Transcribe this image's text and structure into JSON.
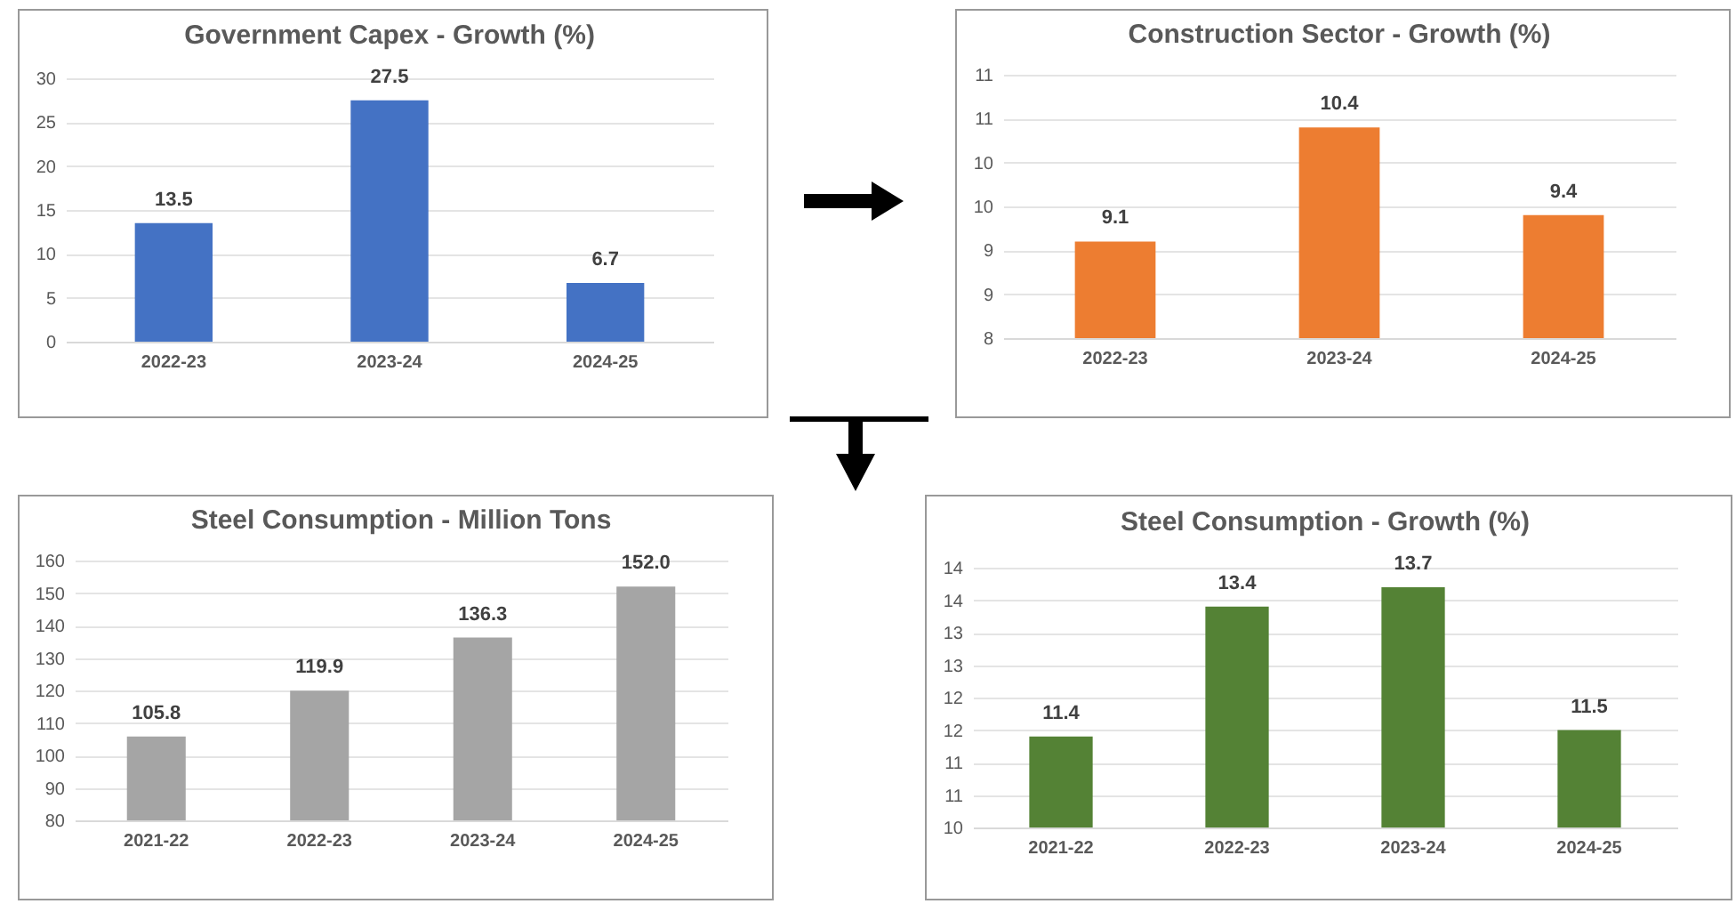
{
  "chart_data": [
    {
      "type": "bar",
      "title": "Government Capex - Growth (%)",
      "categories": [
        "2022-23",
        "2023-24",
        "2024-25"
      ],
      "values": [
        13.5,
        27.5,
        6.7
      ],
      "color": "#4472c4",
      "ylim": [
        0,
        30
      ],
      "yticks": [
        0,
        5,
        10,
        15,
        20,
        25,
        30
      ],
      "grid": "y",
      "data_labels": true
    },
    {
      "type": "bar",
      "title": "Construction Sector - Growth (%)",
      "categories": [
        "2022-23",
        "2023-24",
        "2024-25"
      ],
      "values": [
        9.1,
        10.4,
        9.4
      ],
      "color": "#ed7d31",
      "ylim": [
        8,
        11
      ],
      "yticks": [
        8,
        {
          "value": 8.5,
          "label": "9"
        },
        9,
        {
          "value": 9.5,
          "label": "10"
        },
        10,
        {
          "value": 10.5,
          "label": "11"
        },
        11
      ],
      "grid": "y",
      "data_labels": true
    },
    {
      "type": "bar",
      "title": "Steel Consumption - Million Tons",
      "categories": [
        "2021-22",
        "2022-23",
        "2023-24",
        "2024-25"
      ],
      "values": [
        105.8,
        119.9,
        136.3,
        152.0
      ],
      "value_labels": [
        "105.8",
        "119.9",
        "136.3",
        "152.0"
      ],
      "color": "#a5a5a5",
      "ylim": [
        80,
        160
      ],
      "yticks": [
        80,
        90,
        100,
        110,
        120,
        130,
        140,
        150,
        160
      ],
      "grid": "y"
    },
    {
      "type": "bar",
      "title": "Steel Consumption - Growth (%)",
      "categories": [
        "2021-22",
        "2022-23",
        "2023-24",
        "2024-25"
      ],
      "values": [
        11.4,
        13.4,
        13.7,
        11.5
      ],
      "color": "#548235",
      "ylim": [
        10,
        14
      ],
      "yticks": [
        10,
        {
          "value": 10.5,
          "label": "11"
        },
        11,
        {
          "value": 11.5,
          "label": "12"
        },
        12,
        {
          "value": 12.5,
          "label": "13"
        },
        13,
        {
          "value": 13.5,
          "label": "14"
        },
        14
      ],
      "grid": "y",
      "data_labels": true
    }
  ]
}
